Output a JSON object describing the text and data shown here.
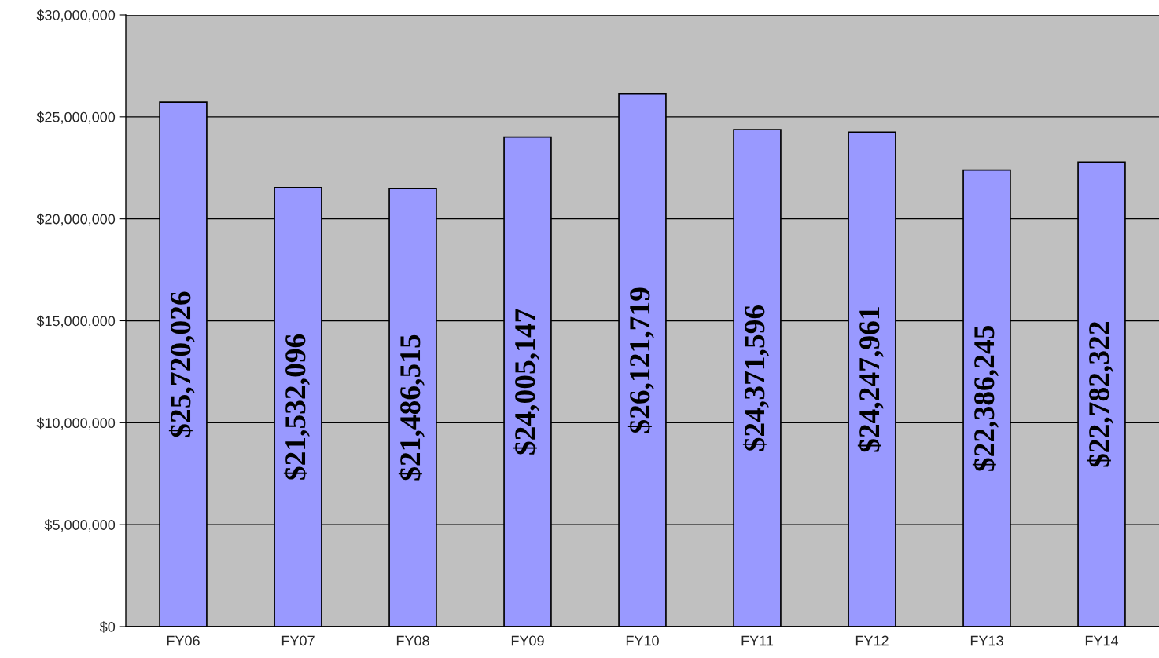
{
  "chart_data": {
    "type": "bar",
    "categories": [
      "FY06",
      "FY07",
      "FY08",
      "FY09",
      "FY10",
      "FY11",
      "FY12",
      "FY13",
      "FY14"
    ],
    "values": [
      25720026,
      21532096,
      21486515,
      24005147,
      26121719,
      24371596,
      24247961,
      22386245,
      22782322
    ],
    "value_labels": [
      "$25,720,026",
      "$21,532,096",
      "$21,486,515",
      "$24,005,147",
      "$26,121,719",
      "$24,371,596",
      "$24,247,961",
      "$22,386,245",
      "$22,782,322"
    ],
    "color": "#9999ff",
    "ylim": [
      0,
      30000000
    ],
    "yticks": [
      {
        "value": 0,
        "label": "$0"
      },
      {
        "value": 5000000,
        "label": "$5,000,000"
      },
      {
        "value": 10000000,
        "label": "$10,000,000"
      },
      {
        "value": 15000000,
        "label": "$15,000,000"
      },
      {
        "value": 20000000,
        "label": "$20,000,000"
      },
      {
        "value": 25000000,
        "label": "$25,000,000"
      },
      {
        "value": 30000000,
        "label": "$30,000,000"
      }
    ],
    "grid": "y",
    "legend": false
  }
}
